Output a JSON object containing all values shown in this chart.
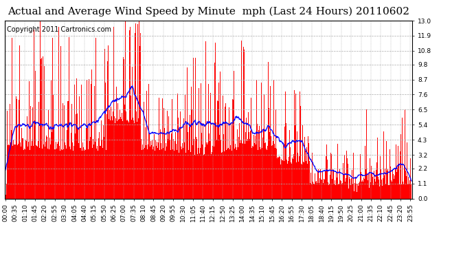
{
  "title": "Actual and Average Wind Speed by Minute  mph (Last 24 Hours) 20110602",
  "copyright": "Copyright 2011 Cartronics.com",
  "yticks": [
    0.0,
    1.1,
    2.2,
    3.2,
    4.3,
    5.4,
    6.5,
    7.6,
    8.7,
    9.8,
    10.8,
    11.9,
    13.0
  ],
  "ymax": 13.0,
  "ymin": 0.0,
  "bar_color": "#ff0000",
  "line_color": "#0000ff",
  "bg_color": "#ffffff",
  "grid_color": "#aaaaaa",
  "title_fontsize": 11,
  "copyright_fontsize": 7,
  "tick_fontsize": 6.5
}
